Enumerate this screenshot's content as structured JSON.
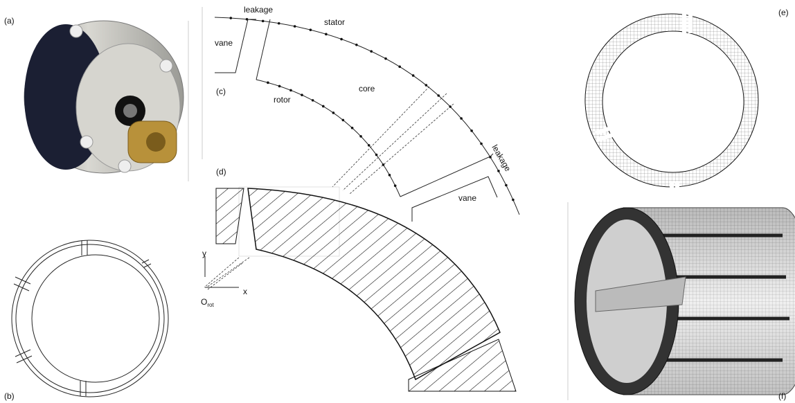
{
  "panels": {
    "a": "(a)",
    "b": "(b)",
    "c": "(c)",
    "d": "(d)",
    "e": "(e)",
    "f": "(f)"
  },
  "labels": {
    "leakage_top": "leakage",
    "stator": "stator",
    "vane_left": "vane",
    "core": "core",
    "rotor": "rotor",
    "leakage_right": "leakage",
    "vane_bottom": "vane"
  },
  "axes": {
    "y": "y",
    "x": "x",
    "origin": "O",
    "origin_sub": "rot"
  }
}
